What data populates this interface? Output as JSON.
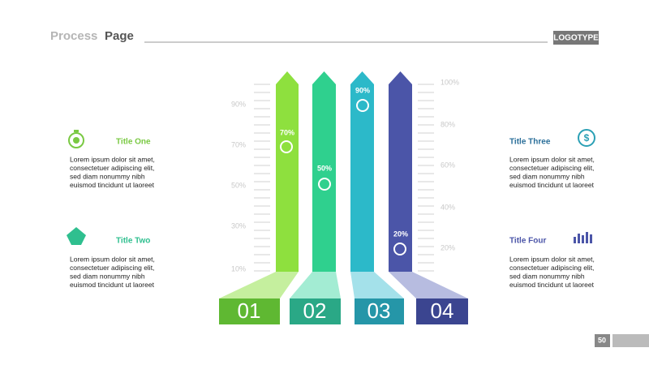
{
  "header": {
    "title_light": "Process",
    "title_bold": "Page",
    "logo": "LOGOTYPE"
  },
  "left_scale": [
    "90%",
    "70%",
    "50%",
    "30%",
    "10%"
  ],
  "right_scale": [
    "100%",
    "80%",
    "60%",
    "40%",
    "20%"
  ],
  "arrows": [
    {
      "label": "70%",
      "number": "01"
    },
    {
      "label": "50%",
      "number": "02"
    },
    {
      "label": "90%",
      "number": "03"
    },
    {
      "label": "20%",
      "number": "04"
    }
  ],
  "blocks": [
    {
      "title": "Title One",
      "lines": [
        "Lorem ipsum dolor sit amet,",
        "consectetuer adipiscing elit,",
        "sed diam nonummy nibh",
        "euismod tincidunt ut laoreet"
      ]
    },
    {
      "title": "Title Two",
      "lines": [
        "Lorem ipsum dolor sit amet,",
        "consectetuer adipiscing elit,",
        "sed diam nonummy nibh",
        "euismod tincidunt ut laoreet"
      ]
    },
    {
      "title": "Title Three",
      "lines": [
        "Lorem ipsum dolor sit amet,",
        "consectetuer adipiscing elit,",
        "sed diam nonummy nibh",
        "euismod tincidunt ut laoreet"
      ]
    },
    {
      "title": "Title Four",
      "lines": [
        "Lorem ipsum dolor sit amet,",
        "consectetuer adipiscing elit,",
        "sed diam nonummy nibh",
        "euismod tincidunt ut laoreet"
      ]
    }
  ],
  "page_number": "50"
}
